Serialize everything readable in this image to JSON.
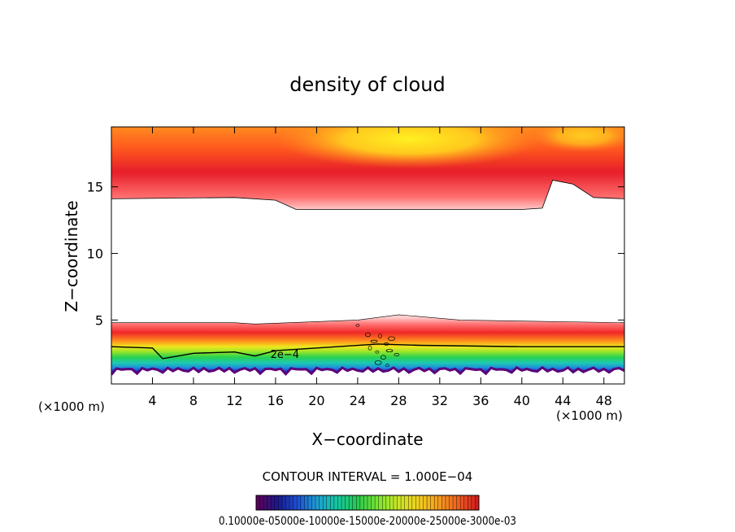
{
  "chart_data": {
    "type": "heatmap",
    "title": "density of cloud",
    "xlabel": "X−coordinate",
    "ylabel": "Z−coordinate",
    "x_unit_left": "(×1000 m)",
    "x_unit_right": "(×1000 m)",
    "xlim": [
      0,
      50
    ],
    "ylim": [
      0.2,
      19.5
    ],
    "x_ticks": [
      4,
      8,
      12,
      16,
      20,
      24,
      28,
      32,
      36,
      40,
      44,
      48
    ],
    "y_ticks": [
      5,
      10,
      15
    ],
    "grid": false,
    "contour_interval_label": "CONTOUR INTERVAL = 1.000E−04",
    "contour_line_label": "2e−4",
    "colorbar_label": "0.10000e-05000e-10000e-15000e-20000e-25000e-3000e-03",
    "colorbar_colors": [
      "#5a005a",
      "#1a1a8c",
      "#1e50d2",
      "#1ea0d2",
      "#14c8a0",
      "#28c850",
      "#78e632",
      "#c8e628",
      "#f0d21e",
      "#f5a01e",
      "#f0641e",
      "#d21e1e"
    ],
    "upper_layer_boundary_km": [
      [
        0,
        14.1
      ],
      [
        12,
        14.2
      ],
      [
        16,
        14.0
      ],
      [
        18,
        13.3
      ],
      [
        40,
        13.3
      ],
      [
        42,
        13.4
      ],
      [
        43,
        15.5
      ],
      [
        45,
        15.2
      ],
      [
        47,
        14.2
      ],
      [
        50,
        14.1
      ]
    ],
    "lower_layer_top_km": [
      [
        0,
        4.8
      ],
      [
        12,
        4.8
      ],
      [
        14,
        4.7
      ],
      [
        24,
        5.0
      ],
      [
        28,
        5.4
      ],
      [
        34,
        5.0
      ],
      [
        50,
        4.8
      ]
    ],
    "contour_2e4_km": [
      [
        0,
        3.0
      ],
      [
        4,
        2.9
      ],
      [
        5,
        2.1
      ],
      [
        8,
        2.5
      ],
      [
        12,
        2.6
      ],
      [
        14,
        2.3
      ],
      [
        16,
        2.7
      ],
      [
        20,
        2.9
      ],
      [
        26,
        3.2
      ],
      [
        30,
        3.1
      ],
      [
        40,
        3.0
      ],
      [
        50,
        3.0
      ]
    ]
  }
}
